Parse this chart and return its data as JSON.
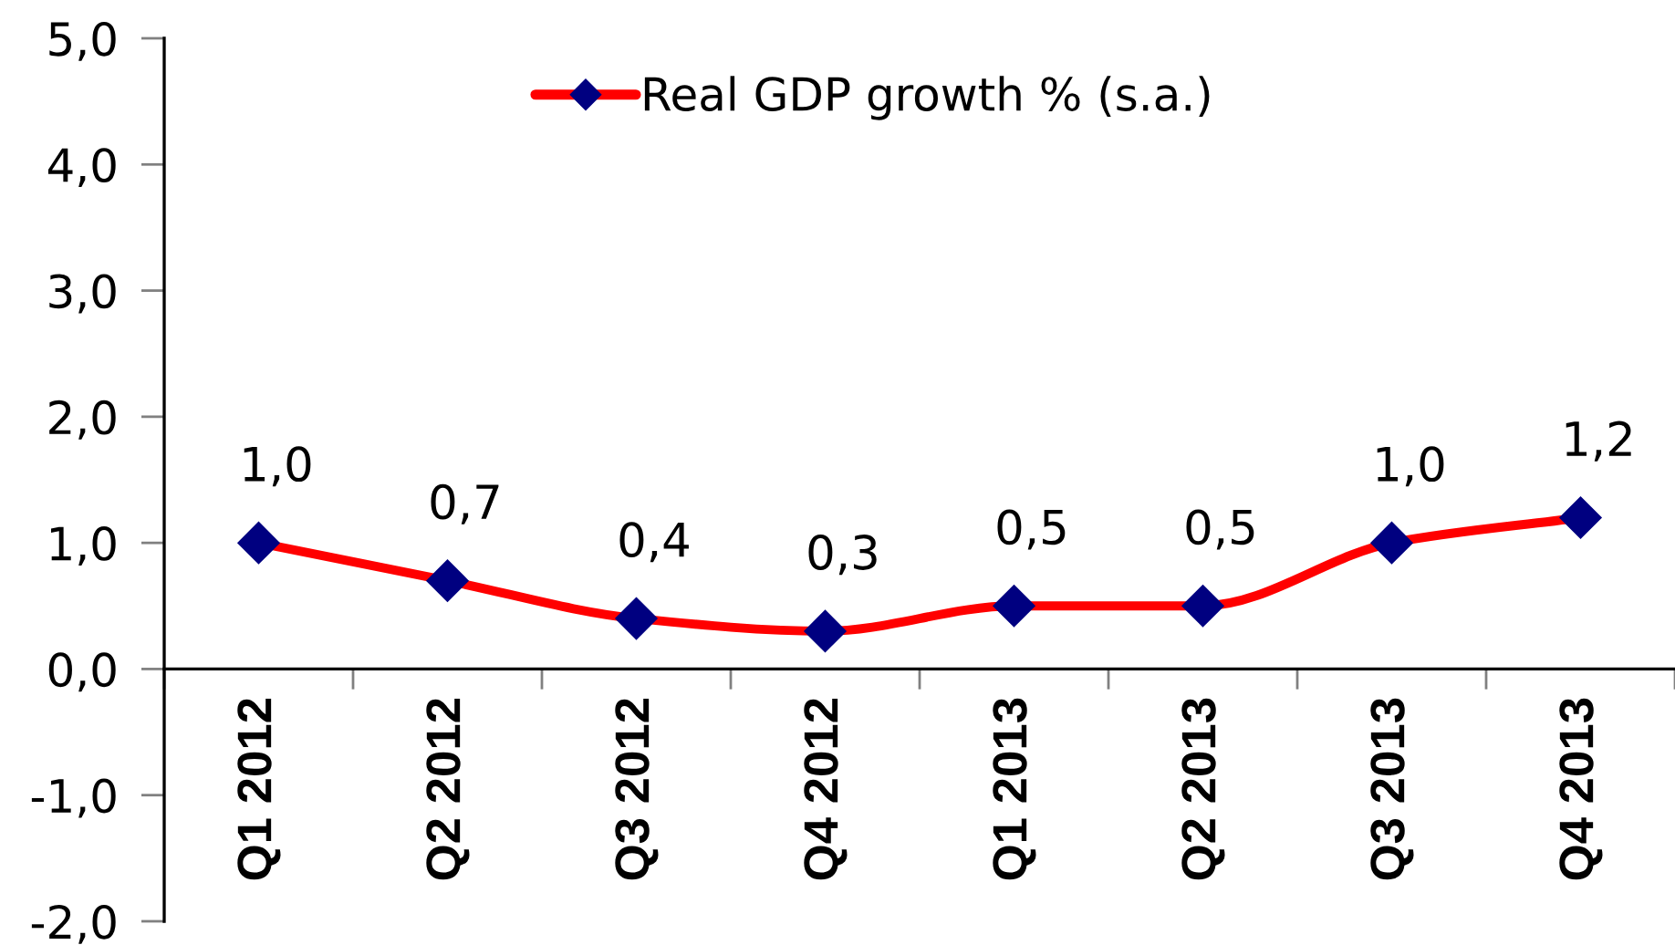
{
  "chart_data": {
    "type": "line",
    "categories": [
      "Q1 2012",
      "Q2 2012",
      "Q3 2012",
      "Q4 2012",
      "Q1 2013",
      "Q2 2013",
      "Q3 2013",
      "Q4 2013"
    ],
    "series": [
      {
        "name": "Real GDP growth % (s.a.)",
        "color": "#ff0000",
        "values": [
          1.0,
          0.7,
          0.4,
          0.3,
          0.5,
          0.5,
          1.0,
          1.2
        ],
        "value_labels": [
          "1,0",
          "0,7",
          "0,4",
          "0,3",
          "0,5",
          "0,5",
          "1,0",
          "1,2"
        ]
      }
    ],
    "ylim": [
      -2,
      5
    ],
    "yticks": [
      {
        "value": -2,
        "label": "-2,0"
      },
      {
        "value": -1,
        "label": "-1,0"
      },
      {
        "value": 0,
        "label": "0,0"
      },
      {
        "value": 1,
        "label": "1,0"
      },
      {
        "value": 2,
        "label": "2,0"
      },
      {
        "value": 3,
        "label": "3,0"
      },
      {
        "value": 4,
        "label": "4,0"
      },
      {
        "value": 5,
        "label": "5,0"
      }
    ],
    "grid": false,
    "legend": "top",
    "marker": "diamond",
    "line_style": "solid"
  }
}
